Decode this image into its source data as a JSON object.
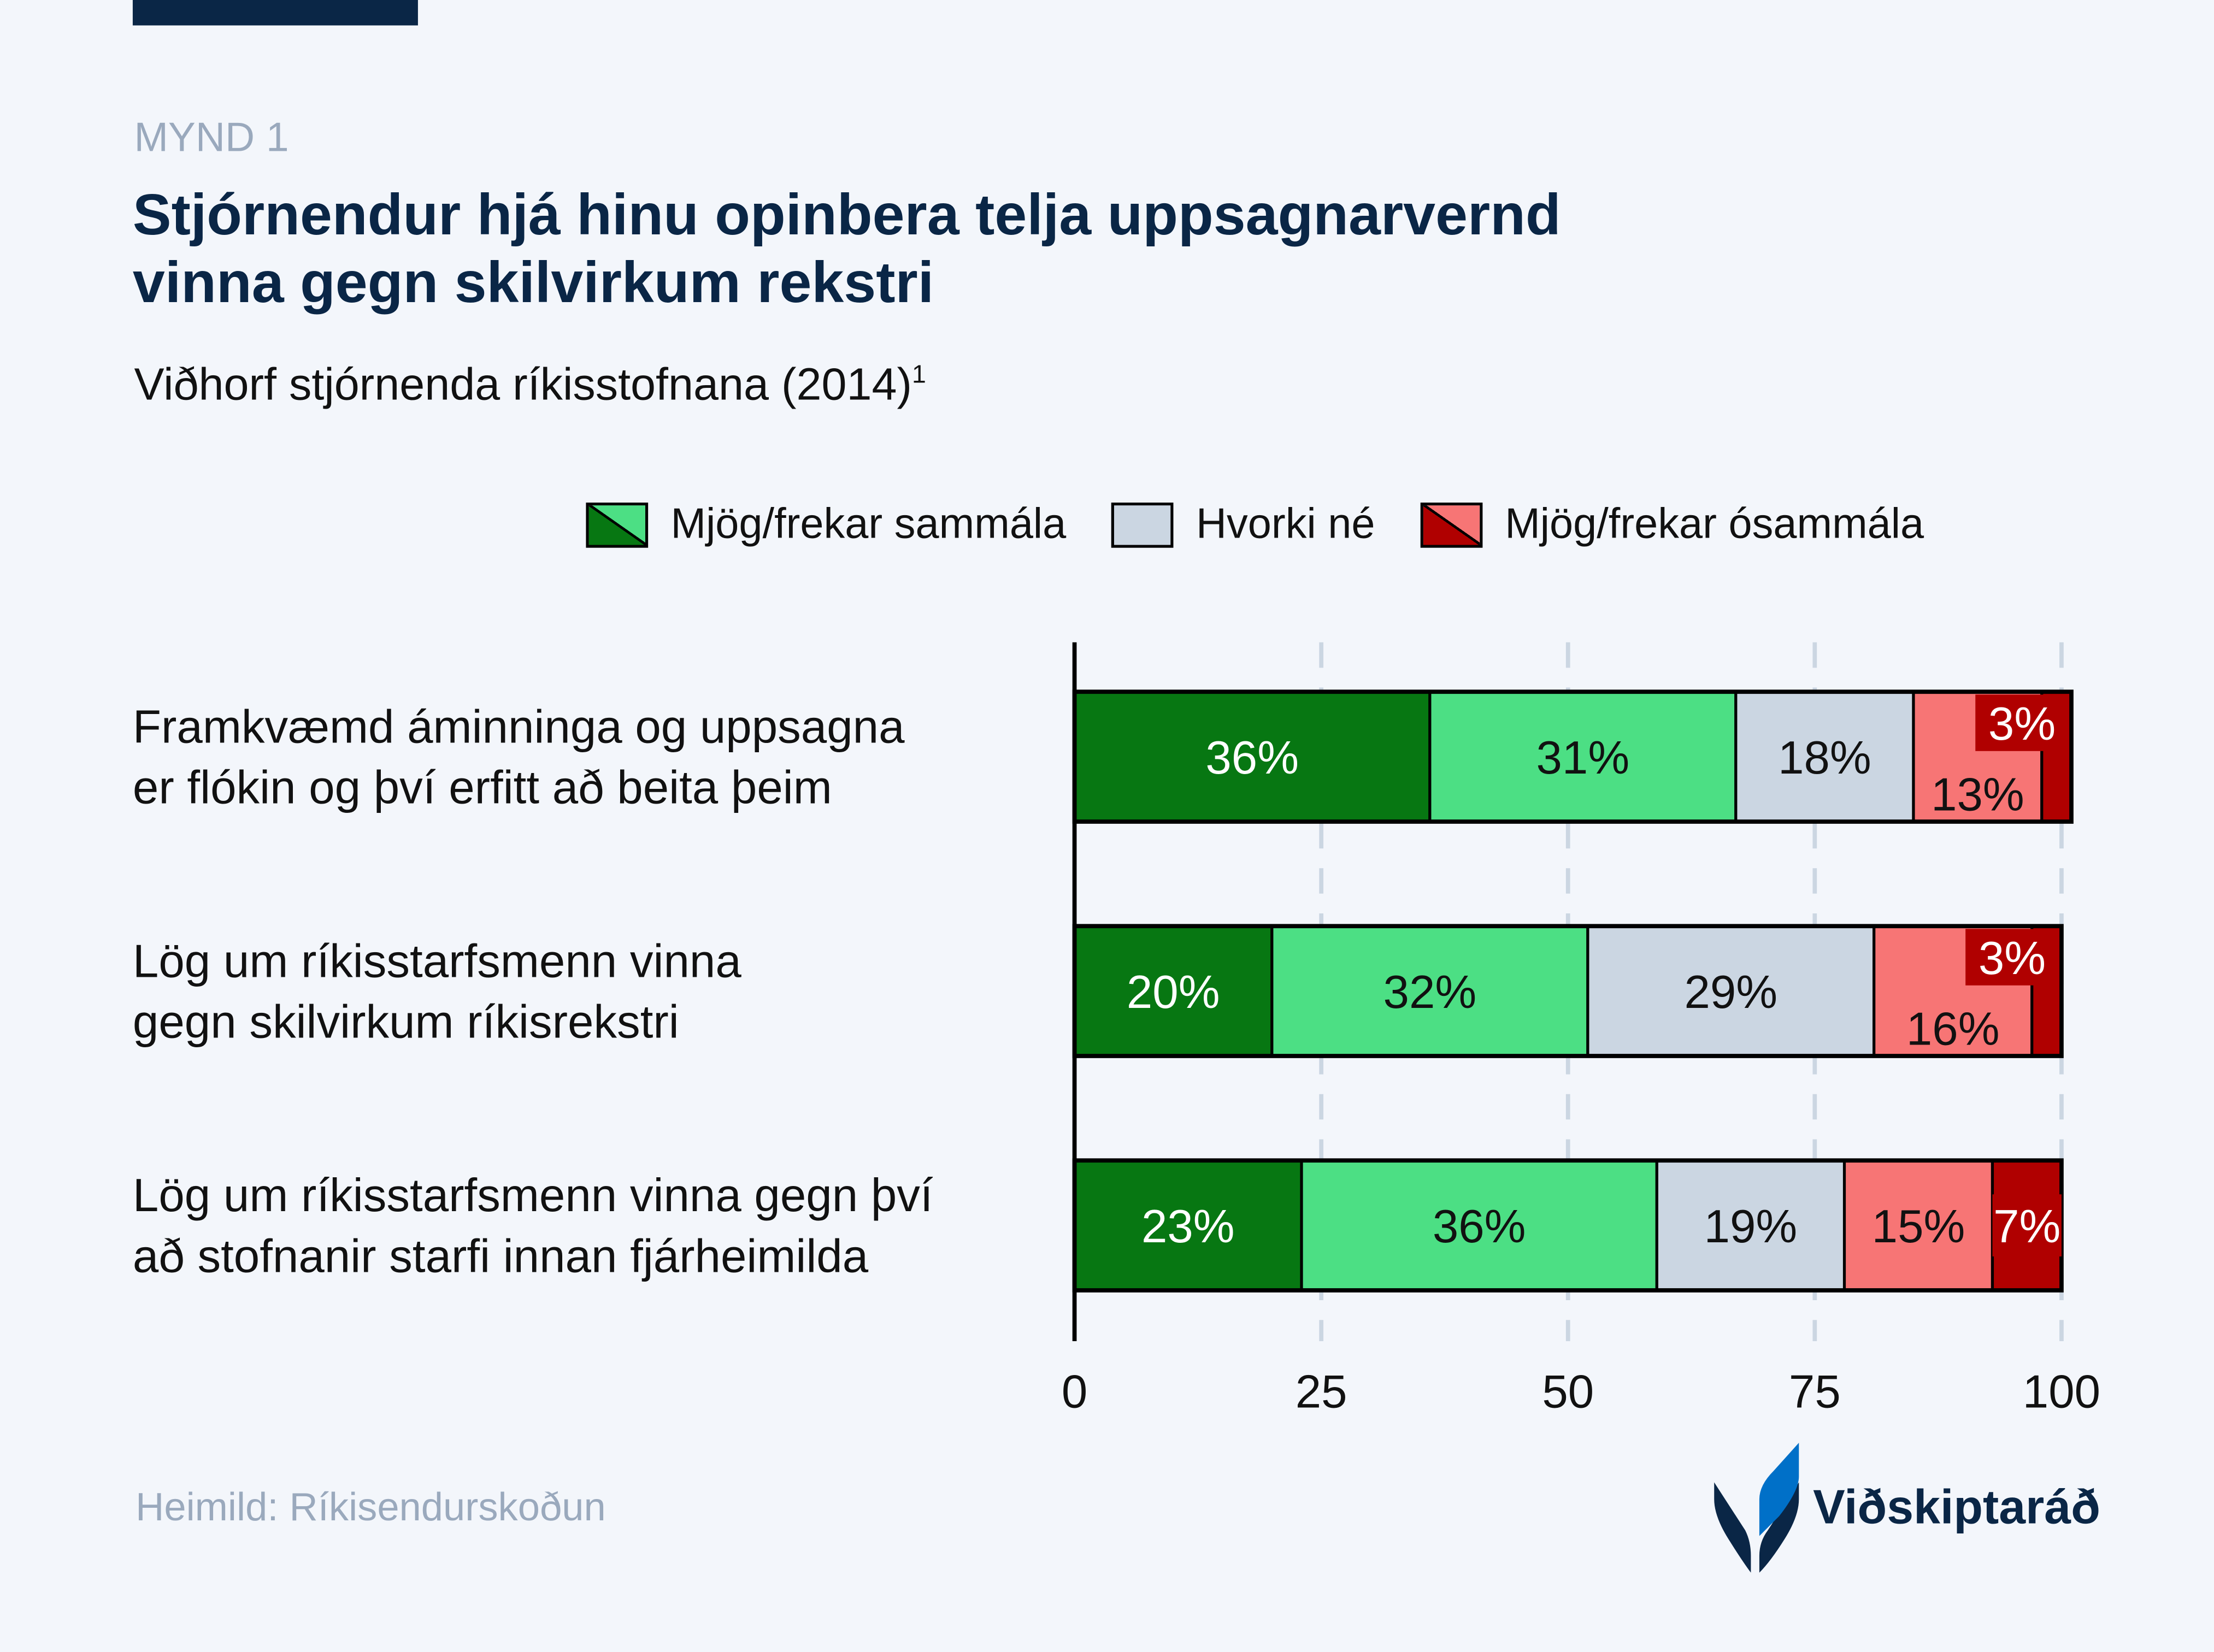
{
  "kicker": "MYND 1",
  "title_line1": "Stjórnendur hjá hinu opinbera telja uppsagnarvernd",
  "title_line2": "vinna gegn skilvirkum rekstri",
  "subtitle": "Viðhorf stjórnenda ríkisstofnana (2014)",
  "subtitle_footnote": "1",
  "source": "Heimild: Ríkisendurskoðun",
  "logo_text": "Viðskiptaráð",
  "chart_data": {
    "type": "bar",
    "orientation": "horizontal",
    "stacked": true,
    "categories": [
      [
        "Framkvæmd áminninga og uppsagna",
        "er flókin og því erfitt að beita þeim"
      ],
      [
        "Lög um ríkisstarfsmenn vinna",
        "gegn skilvirkum ríkisrekstri"
      ],
      [
        "Lög um ríkisstarfsmenn vinna gegn því",
        "að stofnanir starfi innan fjárheimilda"
      ]
    ],
    "legend": [
      {
        "name": "Mjög/frekar sammála",
        "colors": [
          "#077712",
          "#4cdf84"
        ]
      },
      {
        "name": "Hvorki né",
        "colors": [
          "#cbd6e2"
        ]
      },
      {
        "name": "Mjög/frekar ósammála",
        "colors": [
          "#b00000",
          "#f77575"
        ]
      }
    ],
    "series": [
      {
        "color": "#077712",
        "label_color": "#ffffff",
        "values": [
          36,
          20,
          23
        ]
      },
      {
        "color": "#4cdf84",
        "label_color": "#111111",
        "values": [
          31,
          32,
          36
        ]
      },
      {
        "color": "#cbd6e2",
        "label_color": "#111111",
        "values": [
          18,
          29,
          19
        ]
      },
      {
        "color": "#f77575",
        "label_color": "#111111",
        "values": [
          13,
          16,
          15
        ]
      },
      {
        "color": "#b00000",
        "label_color": "#ffffff",
        "values": [
          3,
          3,
          7
        ]
      }
    ],
    "xlim": [
      0,
      100
    ],
    "xticks": [
      "0",
      "25",
      "50",
      "75",
      "100"
    ],
    "grid": true,
    "legend_position": "top-right",
    "label_suffix": "%"
  }
}
